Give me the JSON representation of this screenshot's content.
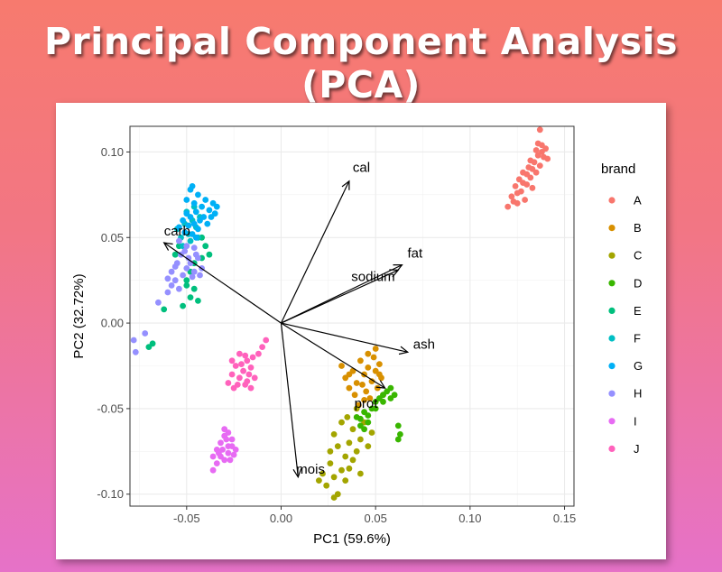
{
  "page": {
    "title": "Principal Component Analysis (PCA)"
  },
  "chart_data": {
    "type": "scatter",
    "title": "",
    "xlabel": "PC1 (59.6%)",
    "ylabel": "PC2 (32.72%)",
    "xlim": [
      -0.08,
      0.155
    ],
    "ylim": [
      -0.107,
      0.115
    ],
    "xticks": [
      -0.05,
      0.0,
      0.05,
      0.1,
      0.15
    ],
    "xtick_labels": [
      "-0.05",
      "0.00",
      "0.05",
      "0.10",
      "0.15"
    ],
    "yticks": [
      -0.1,
      -0.05,
      0.0,
      0.05,
      0.1
    ],
    "ytick_labels": [
      "-0.10",
      "-0.05",
      "0.00",
      "0.05",
      "0.10"
    ],
    "grid": true,
    "legend": {
      "title": "brand",
      "placement": "right",
      "entries": [
        "A",
        "B",
        "C",
        "D",
        "E",
        "F",
        "G",
        "H",
        "I",
        "J"
      ]
    },
    "colors": {
      "A": "#F8766D",
      "B": "#D89000",
      "C": "#A3A500",
      "D": "#39B600",
      "E": "#00BF7D",
      "F": "#00BFC4",
      "G": "#00B0F6",
      "H": "#9590FF",
      "I": "#E76BF3",
      "J": "#FF62BC"
    },
    "series": [
      {
        "name": "A",
        "points": [
          [
            0.12,
            0.068
          ],
          [
            0.122,
            0.074
          ],
          [
            0.124,
            0.08
          ],
          [
            0.125,
            0.07
          ],
          [
            0.126,
            0.084
          ],
          [
            0.127,
            0.077
          ],
          [
            0.128,
            0.088
          ],
          [
            0.129,
            0.072
          ],
          [
            0.13,
            0.081
          ],
          [
            0.131,
            0.091
          ],
          [
            0.132,
            0.085
          ],
          [
            0.133,
            0.079
          ],
          [
            0.134,
            0.094
          ],
          [
            0.135,
            0.088
          ],
          [
            0.136,
            0.098
          ],
          [
            0.137,
            0.092
          ],
          [
            0.138,
            0.104
          ],
          [
            0.139,
            0.097
          ],
          [
            0.14,
            0.102
          ],
          [
            0.141,
            0.096
          ],
          [
            0.137,
            0.113
          ],
          [
            0.135,
            0.101
          ],
          [
            0.132,
            0.095
          ],
          [
            0.13,
            0.087
          ],
          [
            0.128,
            0.082
          ],
          [
            0.125,
            0.076
          ],
          [
            0.123,
            0.071
          ],
          [
            0.138,
            0.1
          ],
          [
            0.136,
            0.105
          ],
          [
            0.133,
            0.09
          ]
        ]
      },
      {
        "name": "B",
        "points": [
          [
            0.032,
            -0.025
          ],
          [
            0.034,
            -0.032
          ],
          [
            0.036,
            -0.038
          ],
          [
            0.038,
            -0.028
          ],
          [
            0.04,
            -0.035
          ],
          [
            0.042,
            -0.022
          ],
          [
            0.044,
            -0.03
          ],
          [
            0.045,
            -0.04
          ],
          [
            0.046,
            -0.026
          ],
          [
            0.048,
            -0.034
          ],
          [
            0.049,
            -0.02
          ],
          [
            0.05,
            -0.028
          ],
          [
            0.051,
            -0.038
          ],
          [
            0.052,
            -0.024
          ],
          [
            0.053,
            -0.032
          ],
          [
            0.054,
            -0.042
          ],
          [
            0.047,
            -0.044
          ],
          [
            0.043,
            -0.036
          ],
          [
            0.039,
            -0.042
          ],
          [
            0.036,
            -0.03
          ],
          [
            0.05,
            -0.015
          ],
          [
            0.046,
            -0.018
          ],
          [
            0.044,
            -0.045
          ],
          [
            0.041,
            -0.048
          ],
          [
            0.052,
            -0.03
          ]
        ]
      },
      {
        "name": "C",
        "points": [
          [
            0.022,
            -0.088
          ],
          [
            0.024,
            -0.095
          ],
          [
            0.026,
            -0.082
          ],
          [
            0.028,
            -0.09
          ],
          [
            0.03,
            -0.1
          ],
          [
            0.032,
            -0.086
          ],
          [
            0.034,
            -0.078
          ],
          [
            0.036,
            -0.07
          ],
          [
            0.038,
            -0.062
          ],
          [
            0.04,
            -0.075
          ],
          [
            0.042,
            -0.068
          ],
          [
            0.044,
            -0.058
          ],
          [
            0.046,
            -0.072
          ],
          [
            0.048,
            -0.064
          ],
          [
            0.03,
            -0.072
          ],
          [
            0.028,
            -0.065
          ],
          [
            0.032,
            -0.058
          ],
          [
            0.026,
            -0.075
          ],
          [
            0.034,
            -0.092
          ],
          [
            0.036,
            -0.085
          ],
          [
            0.038,
            -0.08
          ],
          [
            0.042,
            -0.088
          ],
          [
            0.02,
            -0.092
          ],
          [
            0.028,
            -0.102
          ],
          [
            0.035,
            -0.055
          ],
          [
            0.04,
            -0.05
          ]
        ]
      },
      {
        "name": "D",
        "points": [
          [
            0.04,
            -0.055
          ],
          [
            0.042,
            -0.06
          ],
          [
            0.044,
            -0.052
          ],
          [
            0.046,
            -0.058
          ],
          [
            0.048,
            -0.05
          ],
          [
            0.05,
            -0.046
          ],
          [
            0.052,
            -0.044
          ],
          [
            0.054,
            -0.042
          ],
          [
            0.056,
            -0.04
          ],
          [
            0.058,
            -0.038
          ],
          [
            0.06,
            -0.042
          ],
          [
            0.062,
            -0.06
          ],
          [
            0.063,
            -0.065
          ],
          [
            0.062,
            -0.068
          ],
          [
            0.044,
            -0.062
          ],
          [
            0.046,
            -0.054
          ],
          [
            0.05,
            -0.05
          ],
          [
            0.054,
            -0.046
          ],
          [
            0.058,
            -0.044
          ],
          [
            0.042,
            -0.056
          ]
        ]
      },
      {
        "name": "E",
        "points": [
          [
            -0.068,
            -0.012
          ],
          [
            -0.07,
            -0.014
          ],
          [
            -0.062,
            0.008
          ],
          [
            -0.052,
            0.01
          ],
          [
            -0.048,
            0.015
          ],
          [
            -0.044,
            0.013
          ],
          [
            -0.046,
            0.02
          ],
          [
            -0.05,
            0.025
          ],
          [
            -0.048,
            0.03
          ],
          [
            -0.046,
            0.035
          ],
          [
            -0.042,
            0.038
          ],
          [
            -0.04,
            0.045
          ],
          [
            -0.042,
            0.05
          ],
          [
            -0.038,
            0.04
          ],
          [
            -0.054,
            0.045
          ],
          [
            -0.056,
            0.04
          ],
          [
            -0.05,
            0.022
          ]
        ]
      },
      {
        "name": "F",
        "points": [
          [
            -0.055,
            0.055
          ],
          [
            -0.053,
            0.05
          ],
          [
            -0.051,
            0.058
          ],
          [
            -0.049,
            0.052
          ],
          [
            -0.047,
            0.06
          ],
          [
            -0.045,
            0.056
          ],
          [
            -0.043,
            0.062
          ],
          [
            -0.052,
            0.045
          ],
          [
            -0.048,
            0.048
          ],
          [
            -0.044,
            0.05
          ],
          [
            -0.05,
            0.065
          ],
          [
            -0.046,
            0.068
          ]
        ]
      },
      {
        "name": "G",
        "points": [
          [
            -0.05,
            0.072
          ],
          [
            -0.048,
            0.078
          ],
          [
            -0.046,
            0.07
          ],
          [
            -0.044,
            0.075
          ],
          [
            -0.042,
            0.068
          ],
          [
            -0.04,
            0.072
          ],
          [
            -0.038,
            0.066
          ],
          [
            -0.036,
            0.07
          ],
          [
            -0.034,
            0.068
          ],
          [
            -0.05,
            0.064
          ],
          [
            -0.052,
            0.06
          ],
          [
            -0.048,
            0.062
          ],
          [
            -0.046,
            0.058
          ],
          [
            -0.044,
            0.055
          ],
          [
            -0.047,
            0.08
          ],
          [
            -0.045,
            0.065
          ],
          [
            -0.041,
            0.062
          ],
          [
            -0.054,
            0.056
          ],
          [
            -0.049,
            0.057
          ],
          [
            -0.043,
            0.06
          ],
          [
            -0.039,
            0.058
          ],
          [
            -0.051,
            0.053
          ],
          [
            -0.047,
            0.052
          ],
          [
            -0.045,
            0.05
          ],
          [
            -0.037,
            0.062
          ],
          [
            -0.035,
            0.064
          ]
        ]
      },
      {
        "name": "H",
        "points": [
          [
            -0.078,
            -0.01
          ],
          [
            -0.077,
            -0.017
          ],
          [
            -0.072,
            -0.006
          ],
          [
            -0.065,
            0.012
          ],
          [
            -0.06,
            0.018
          ],
          [
            -0.058,
            0.022
          ],
          [
            -0.056,
            0.025
          ],
          [
            -0.054,
            0.02
          ],
          [
            -0.052,
            0.028
          ],
          [
            -0.05,
            0.032
          ],
          [
            -0.048,
            0.035
          ],
          [
            -0.046,
            0.03
          ],
          [
            -0.044,
            0.038
          ],
          [
            -0.042,
            0.032
          ],
          [
            -0.055,
            0.035
          ],
          [
            -0.053,
            0.04
          ],
          [
            -0.051,
            0.042
          ],
          [
            -0.058,
            0.03
          ],
          [
            -0.047,
            0.027
          ],
          [
            -0.045,
            0.04
          ],
          [
            -0.049,
            0.038
          ],
          [
            -0.043,
            0.028
          ],
          [
            -0.056,
            0.033
          ],
          [
            -0.05,
            0.045
          ],
          [
            -0.06,
            0.026
          ],
          [
            -0.054,
            0.048
          ],
          [
            -0.046,
            0.044
          ]
        ]
      },
      {
        "name": "I",
        "points": [
          [
            -0.036,
            -0.078
          ],
          [
            -0.034,
            -0.074
          ],
          [
            -0.032,
            -0.07
          ],
          [
            -0.03,
            -0.066
          ],
          [
            -0.028,
            -0.072
          ],
          [
            -0.026,
            -0.068
          ],
          [
            -0.024,
            -0.074
          ],
          [
            -0.03,
            -0.08
          ],
          [
            -0.032,
            -0.078
          ],
          [
            -0.028,
            -0.076
          ],
          [
            -0.026,
            -0.072
          ],
          [
            -0.034,
            -0.082
          ],
          [
            -0.036,
            -0.086
          ],
          [
            -0.03,
            -0.062
          ],
          [
            -0.028,
            -0.064
          ],
          [
            -0.025,
            -0.077
          ],
          [
            -0.033,
            -0.076
          ],
          [
            -0.031,
            -0.074
          ],
          [
            -0.027,
            -0.08
          ],
          [
            -0.029,
            -0.068
          ]
        ]
      },
      {
        "name": "J",
        "points": [
          [
            -0.028,
            -0.035
          ],
          [
            -0.026,
            -0.03
          ],
          [
            -0.025,
            -0.038
          ],
          [
            -0.024,
            -0.025
          ],
          [
            -0.022,
            -0.032
          ],
          [
            -0.02,
            -0.028
          ],
          [
            -0.018,
            -0.022
          ],
          [
            -0.019,
            -0.036
          ],
          [
            -0.017,
            -0.03
          ],
          [
            -0.016,
            -0.026
          ],
          [
            -0.015,
            -0.02
          ],
          [
            -0.018,
            -0.034
          ],
          [
            -0.016,
            -0.038
          ],
          [
            -0.014,
            -0.032
          ],
          [
            -0.012,
            -0.018
          ],
          [
            -0.01,
            -0.014
          ],
          [
            -0.008,
            -0.01
          ],
          [
            -0.022,
            -0.018
          ],
          [
            -0.026,
            -0.022
          ],
          [
            -0.021,
            -0.024
          ],
          [
            -0.023,
            -0.036
          ],
          [
            -0.019,
            -0.019
          ]
        ]
      }
    ],
    "loadings": [
      {
        "label": "cal",
        "x": 0.036,
        "y": 0.083
      },
      {
        "label": "fat",
        "x": 0.064,
        "y": 0.034
      },
      {
        "label": "sodium",
        "x": 0.062,
        "y": 0.031
      },
      {
        "label": "ash",
        "x": 0.067,
        "y": -0.017
      },
      {
        "label": "prot",
        "x": 0.055,
        "y": -0.038
      },
      {
        "label": "mois",
        "x": 0.009,
        "y": -0.09
      },
      {
        "label": "carb",
        "x": -0.062,
        "y": 0.047
      }
    ]
  }
}
